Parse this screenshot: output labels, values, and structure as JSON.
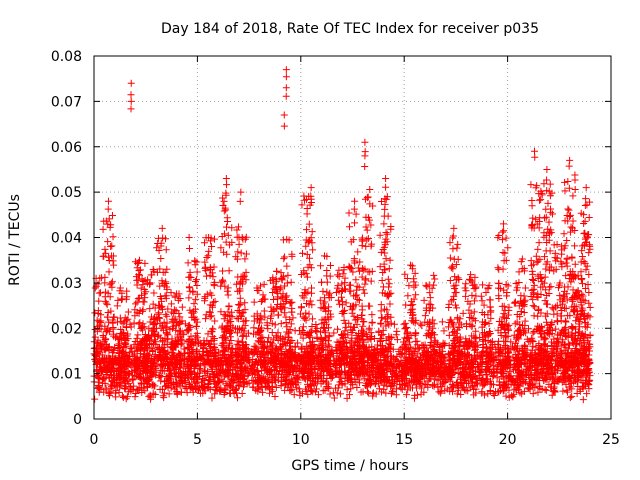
{
  "chart_data": {
    "type": "scatter",
    "title": "Day 184 of 2018, Rate Of TEC Index for receiver p035",
    "xlabel": "GPS time / hours",
    "ylabel": "ROTI / TECUs",
    "xlim": [
      0,
      25
    ],
    "ylim": [
      0,
      0.08
    ],
    "xticks": [
      0,
      5,
      10,
      15,
      20,
      25
    ],
    "yticks": [
      0,
      0.01,
      0.02,
      0.03,
      0.04,
      0.05,
      0.06,
      0.07,
      0.08
    ],
    "x_tick_labels": [
      "0",
      "5",
      "10",
      "15",
      "20",
      "25"
    ],
    "y_tick_labels": [
      "0",
      "0.01",
      "0.02",
      "0.03",
      "0.04",
      "0.05",
      "0.06",
      "0.07",
      "0.08"
    ],
    "grid": true,
    "marker": "+",
    "series": [
      {
        "name": "ROTI",
        "color": "#ff0000",
        "peaks": [
          {
            "x": 0.1,
            "y": 0.031
          },
          {
            "x": 0.7,
            "y": 0.048
          },
          {
            "x": 1.8,
            "y": 0.074
          },
          {
            "x": 1.8,
            "y": 0.07
          },
          {
            "x": 2.2,
            "y": 0.035
          },
          {
            "x": 3.3,
            "y": 0.042
          },
          {
            "x": 4.6,
            "y": 0.04
          },
          {
            "x": 6.4,
            "y": 0.053
          },
          {
            "x": 7.1,
            "y": 0.05
          },
          {
            "x": 9.3,
            "y": 0.077
          },
          {
            "x": 9.3,
            "y": 0.073
          },
          {
            "x": 9.2,
            "y": 0.067
          },
          {
            "x": 10.5,
            "y": 0.051
          },
          {
            "x": 12.6,
            "y": 0.048
          },
          {
            "x": 13.1,
            "y": 0.061
          },
          {
            "x": 13.1,
            "y": 0.058
          },
          {
            "x": 14.1,
            "y": 0.053
          },
          {
            "x": 17.4,
            "y": 0.042
          },
          {
            "x": 19.8,
            "y": 0.043
          },
          {
            "x": 21.3,
            "y": 0.059
          },
          {
            "x": 21.9,
            "y": 0.055
          },
          {
            "x": 23.0,
            "y": 0.057
          },
          {
            "x": 23.8,
            "y": 0.051
          }
        ],
        "bursts": [
          {
            "x": 0.1,
            "h": 0.032
          },
          {
            "x": 0.7,
            "h": 0.045
          },
          {
            "x": 1.4,
            "h": 0.03
          },
          {
            "x": 2.2,
            "h": 0.035
          },
          {
            "x": 2.7,
            "h": 0.033
          },
          {
            "x": 3.3,
            "h": 0.04
          },
          {
            "x": 4.0,
            "h": 0.028
          },
          {
            "x": 4.8,
            "h": 0.036
          },
          {
            "x": 5.6,
            "h": 0.04
          },
          {
            "x": 6.4,
            "h": 0.05
          },
          {
            "x": 7.1,
            "h": 0.044
          },
          {
            "x": 8.0,
            "h": 0.03
          },
          {
            "x": 8.8,
            "h": 0.034
          },
          {
            "x": 9.3,
            "h": 0.04
          },
          {
            "x": 10.3,
            "h": 0.05
          },
          {
            "x": 11.2,
            "h": 0.036
          },
          {
            "x": 12.0,
            "h": 0.034
          },
          {
            "x": 12.6,
            "h": 0.046
          },
          {
            "x": 13.2,
            "h": 0.052
          },
          {
            "x": 14.1,
            "h": 0.05
          },
          {
            "x": 15.3,
            "h": 0.034
          },
          {
            "x": 16.2,
            "h": 0.032
          },
          {
            "x": 17.4,
            "h": 0.04
          },
          {
            "x": 18.2,
            "h": 0.032
          },
          {
            "x": 19.0,
            "h": 0.03
          },
          {
            "x": 19.8,
            "h": 0.042
          },
          {
            "x": 20.6,
            "h": 0.036
          },
          {
            "x": 21.4,
            "h": 0.052
          },
          {
            "x": 21.9,
            "h": 0.053
          },
          {
            "x": 22.5,
            "h": 0.04
          },
          {
            "x": 23.0,
            "h": 0.055
          },
          {
            "x": 23.5,
            "h": 0.034
          },
          {
            "x": 23.8,
            "h": 0.048
          }
        ],
        "baseline_range": [
          0.004,
          0.017
        ],
        "x_range": [
          0,
          24
        ]
      }
    ]
  }
}
